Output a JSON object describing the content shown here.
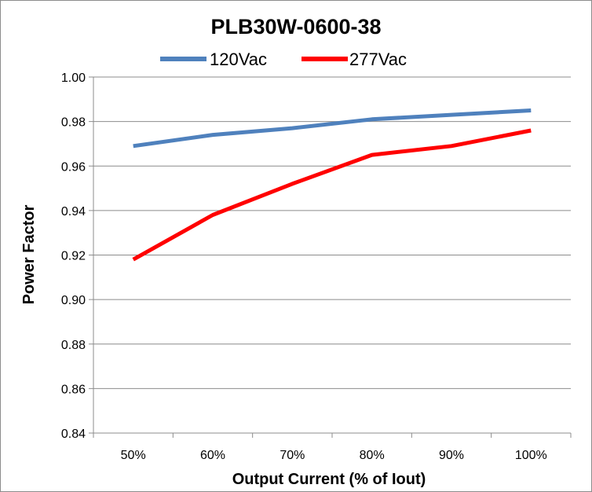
{
  "chart_data": {
    "type": "line",
    "title": "PLB30W-0600-38",
    "xlabel": "Output Current (% of Iout)",
    "ylabel": "Power Factor",
    "categories": [
      "50%",
      "60%",
      "70%",
      "80%",
      "90%",
      "100%"
    ],
    "ylim": [
      0.84,
      1.0
    ],
    "yticks": [
      "0.84",
      "0.86",
      "0.88",
      "0.90",
      "0.92",
      "0.94",
      "0.96",
      "0.98",
      "1.00"
    ],
    "grid": "horizontal",
    "legend_position": "top",
    "series": [
      {
        "name": "120Vac",
        "color": "#4f81bd",
        "values": [
          0.969,
          0.974,
          0.977,
          0.981,
          0.983,
          0.985
        ]
      },
      {
        "name": "277Vac",
        "color": "#ff0000",
        "values": [
          0.918,
          0.938,
          0.952,
          0.965,
          0.969,
          0.976
        ]
      }
    ]
  }
}
